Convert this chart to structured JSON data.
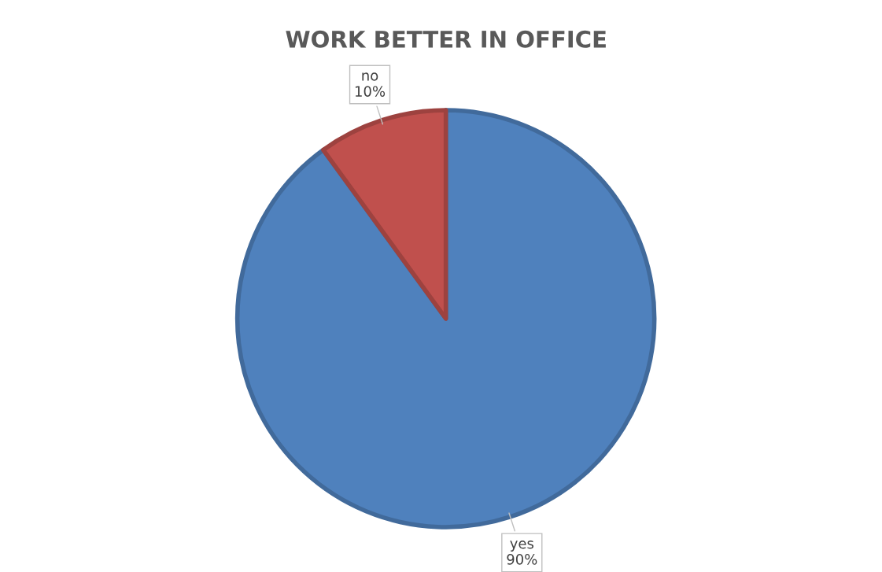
{
  "chart_data": {
    "type": "pie",
    "title": "WORK BETTER IN OFFICE",
    "categories": [
      "yes",
      "no"
    ],
    "values": [
      90,
      10
    ],
    "colors": [
      "#4f81bd",
      "#c0504d"
    ],
    "value_labels": [
      "90%",
      "10%"
    ],
    "legend": false
  }
}
